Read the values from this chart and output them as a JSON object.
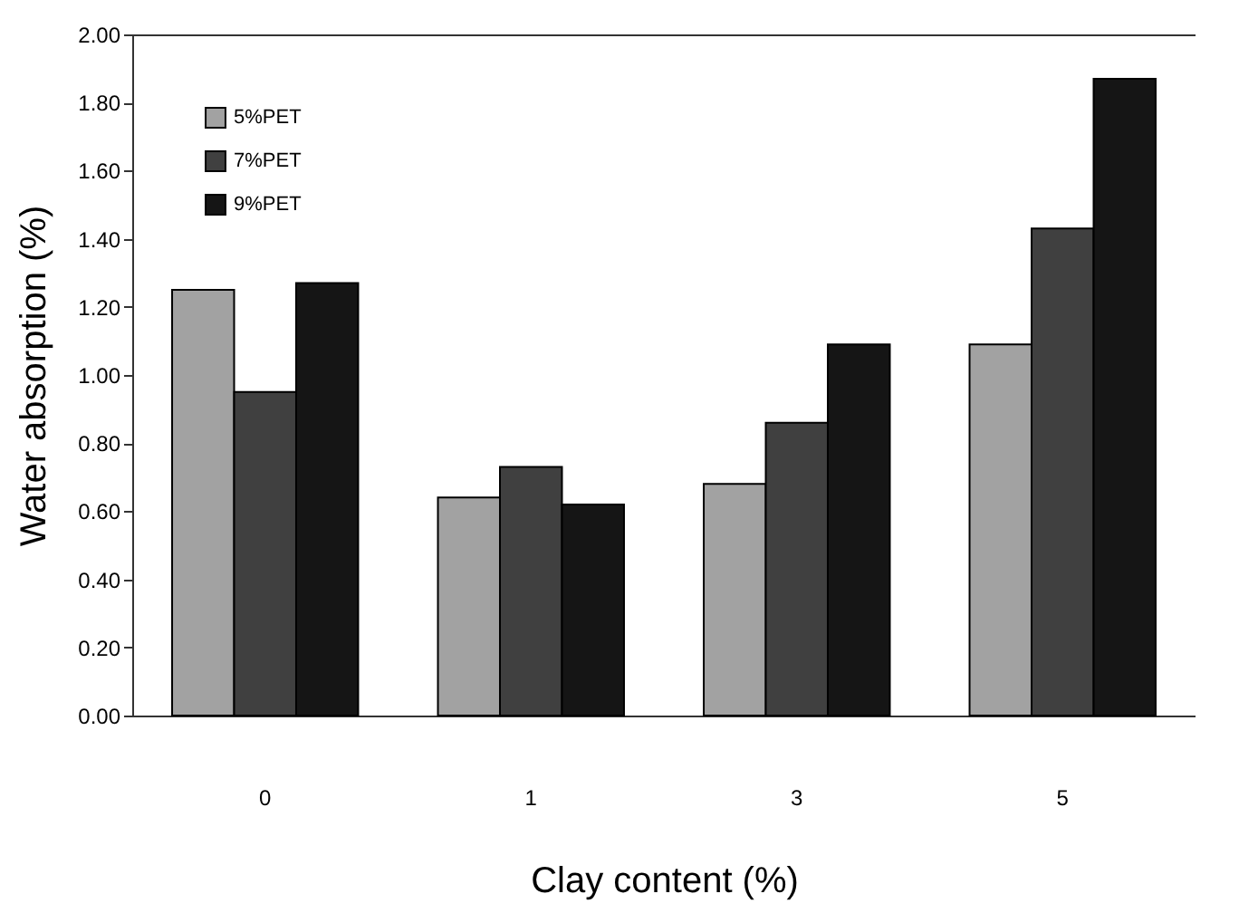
{
  "chart_data": {
    "type": "bar",
    "xlabel": "Clay content (%)",
    "ylabel": "Water absorption (%)",
    "categories": [
      "0",
      "1",
      "3",
      "5"
    ],
    "series": [
      {
        "name": "5%PET",
        "color": "#a2a2a2",
        "values": [
          1.25,
          0.64,
          0.68,
          1.09
        ]
      },
      {
        "name": "7%PET",
        "color": "#404040",
        "values": [
          0.95,
          0.73,
          0.86,
          1.43
        ]
      },
      {
        "name": "9%PET",
        "color": "#151515",
        "values": [
          1.27,
          0.62,
          1.09,
          1.87
        ]
      }
    ],
    "ylim": [
      0,
      2
    ],
    "yticks": [
      {
        "value": 0,
        "label": "0.00"
      },
      {
        "value": 0.2,
        "label": "0.20"
      },
      {
        "value": 0.4,
        "label": "0.40"
      },
      {
        "value": 0.6,
        "label": "0.60"
      },
      {
        "value": 0.8,
        "label": "0.80"
      },
      {
        "value": 1,
        "label": "1.00"
      },
      {
        "value": 1.2,
        "label": "1.20"
      },
      {
        "value": 1.4,
        "label": "1.40"
      },
      {
        "value": 1.6,
        "label": "1.60"
      },
      {
        "value": 1.8,
        "label": "1.80"
      },
      {
        "value": 2,
        "label": "2.00"
      }
    ],
    "grid": false,
    "legend": "top left"
  }
}
